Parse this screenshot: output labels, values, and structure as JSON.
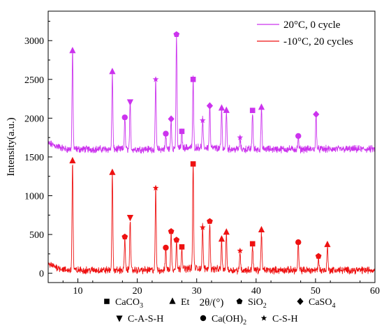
{
  "chart_data": {
    "type": "line",
    "title": "",
    "xlabel": "2θ/(°)",
    "ylabel": "Intensity(a.u.)",
    "xlim": [
      5,
      60
    ],
    "ylim": [
      -120,
      3380
    ],
    "x_ticks": [
      10,
      20,
      30,
      40,
      50,
      60
    ],
    "y_ticks": [
      0,
      500,
      1000,
      1500,
      2000,
      2500,
      3000
    ],
    "legend_position": "top-right",
    "series": [
      {
        "name": "20°C, 0 cycle",
        "color": "#cc33ee",
        "baseline": 1600,
        "peaks": [
          {
            "x": 9.1,
            "y": 2850
          },
          {
            "x": 15.8,
            "y": 2590
          },
          {
            "x": 17.9,
            "y": 2000
          },
          {
            "x": 18.8,
            "y": 2190
          },
          {
            "x": 23.1,
            "y": 2480
          },
          {
            "x": 24.8,
            "y": 1780
          },
          {
            "x": 25.7,
            "y": 1970
          },
          {
            "x": 26.6,
            "y": 3060
          },
          {
            "x": 27.5,
            "y": 1810
          },
          {
            "x": 29.4,
            "y": 2480
          },
          {
            "x": 31.0,
            "y": 1960
          },
          {
            "x": 32.2,
            "y": 2140
          },
          {
            "x": 34.2,
            "y": 2110
          },
          {
            "x": 35.0,
            "y": 2090
          },
          {
            "x": 37.3,
            "y": 1740
          },
          {
            "x": 39.4,
            "y": 2080
          },
          {
            "x": 40.9,
            "y": 2120
          },
          {
            "x": 47.1,
            "y": 1750
          },
          {
            "x": 50.1,
            "y": 2030
          }
        ]
      },
      {
        "name": "-10°C, 20 cycles",
        "color": "#ee1111",
        "baseline": 40,
        "peaks": [
          {
            "x": 9.1,
            "y": 1430
          },
          {
            "x": 15.8,
            "y": 1280
          },
          {
            "x": 17.9,
            "y": 460
          },
          {
            "x": 18.8,
            "y": 700
          },
          {
            "x": 23.1,
            "y": 1080
          },
          {
            "x": 24.8,
            "y": 320
          },
          {
            "x": 25.7,
            "y": 520
          },
          {
            "x": 26.6,
            "y": 420
          },
          {
            "x": 27.5,
            "y": 330
          },
          {
            "x": 29.4,
            "y": 1390
          },
          {
            "x": 31.0,
            "y": 580
          },
          {
            "x": 32.2,
            "y": 650
          },
          {
            "x": 34.2,
            "y": 420
          },
          {
            "x": 35.0,
            "y": 510
          },
          {
            "x": 37.3,
            "y": 280
          },
          {
            "x": 39.4,
            "y": 360
          },
          {
            "x": 40.9,
            "y": 540
          },
          {
            "x": 47.1,
            "y": 380
          },
          {
            "x": 50.5,
            "y": 210
          },
          {
            "x": 52.0,
            "y": 350
          }
        ]
      }
    ],
    "markers": [
      {
        "series": 0,
        "x": 9.1,
        "y": 2870,
        "shape": "triangle-up"
      },
      {
        "series": 0,
        "x": 15.8,
        "y": 2600,
        "shape": "triangle-up"
      },
      {
        "series": 0,
        "x": 17.9,
        "y": 2010,
        "shape": "circle"
      },
      {
        "series": 0,
        "x": 18.8,
        "y": 2210,
        "shape": "triangle-down"
      },
      {
        "series": 0,
        "x": 23.1,
        "y": 2500,
        "shape": "star"
      },
      {
        "series": 0,
        "x": 24.8,
        "y": 1800,
        "shape": "circle"
      },
      {
        "series": 0,
        "x": 25.7,
        "y": 1990,
        "shape": "diamond"
      },
      {
        "series": 0,
        "x": 26.6,
        "y": 3080,
        "shape": "pentagon"
      },
      {
        "series": 0,
        "x": 27.5,
        "y": 1830,
        "shape": "square"
      },
      {
        "series": 0,
        "x": 29.4,
        "y": 2500,
        "shape": "square"
      },
      {
        "series": 0,
        "x": 31.0,
        "y": 1970,
        "shape": "star"
      },
      {
        "series": 0,
        "x": 32.2,
        "y": 2160,
        "shape": "diamond"
      },
      {
        "series": 0,
        "x": 34.2,
        "y": 2130,
        "shape": "triangle-up"
      },
      {
        "series": 0,
        "x": 35.0,
        "y": 2100,
        "shape": "triangle-up"
      },
      {
        "series": 0,
        "x": 37.3,
        "y": 1750,
        "shape": "star"
      },
      {
        "series": 0,
        "x": 39.4,
        "y": 2100,
        "shape": "square"
      },
      {
        "series": 0,
        "x": 40.9,
        "y": 2140,
        "shape": "triangle-up"
      },
      {
        "series": 0,
        "x": 47.1,
        "y": 1770,
        "shape": "circle"
      },
      {
        "series": 0,
        "x": 50.1,
        "y": 2050,
        "shape": "diamond"
      },
      {
        "series": 1,
        "x": 9.1,
        "y": 1450,
        "shape": "triangle-up"
      },
      {
        "series": 1,
        "x": 15.8,
        "y": 1300,
        "shape": "triangle-up"
      },
      {
        "series": 1,
        "x": 17.9,
        "y": 470,
        "shape": "pentagon"
      },
      {
        "series": 1,
        "x": 18.8,
        "y": 720,
        "shape": "triangle-down"
      },
      {
        "series": 1,
        "x": 23.1,
        "y": 1100,
        "shape": "star"
      },
      {
        "series": 1,
        "x": 24.8,
        "y": 330,
        "shape": "circle"
      },
      {
        "series": 1,
        "x": 25.7,
        "y": 540,
        "shape": "pentagon"
      },
      {
        "series": 1,
        "x": 26.6,
        "y": 430,
        "shape": "pentagon"
      },
      {
        "series": 1,
        "x": 27.5,
        "y": 340,
        "shape": "square"
      },
      {
        "series": 1,
        "x": 29.4,
        "y": 1410,
        "shape": "square"
      },
      {
        "series": 1,
        "x": 31.0,
        "y": 590,
        "shape": "star"
      },
      {
        "series": 1,
        "x": 32.2,
        "y": 670,
        "shape": "pentagon"
      },
      {
        "series": 1,
        "x": 34.2,
        "y": 440,
        "shape": "triangle-up"
      },
      {
        "series": 1,
        "x": 35.0,
        "y": 530,
        "shape": "triangle-up"
      },
      {
        "series": 1,
        "x": 37.3,
        "y": 290,
        "shape": "star"
      },
      {
        "series": 1,
        "x": 39.4,
        "y": 380,
        "shape": "square"
      },
      {
        "series": 1,
        "x": 40.9,
        "y": 560,
        "shape": "triangle-up"
      },
      {
        "series": 1,
        "x": 47.1,
        "y": 400,
        "shape": "circle"
      },
      {
        "series": 1,
        "x": 50.5,
        "y": 220,
        "shape": "pentagon"
      },
      {
        "series": 1,
        "x": 52.0,
        "y": 370,
        "shape": "triangle-up"
      }
    ],
    "marker_legend": [
      {
        "shape": "square",
        "label": "CaCO",
        "sub": "3"
      },
      {
        "shape": "triangle-up",
        "label": "Et",
        "sub": ""
      },
      {
        "shape": "pentagon",
        "label": "SiO",
        "sub": "2"
      },
      {
        "shape": "diamond",
        "label": "CaSO",
        "sub": "4"
      },
      {
        "shape": "triangle-down",
        "label": "C-A-S-H",
        "sub": ""
      },
      {
        "shape": "circle",
        "label": "Ca(OH)",
        "sub": "2"
      },
      {
        "shape": "star",
        "label": "C-S-H",
        "sub": ""
      }
    ]
  }
}
